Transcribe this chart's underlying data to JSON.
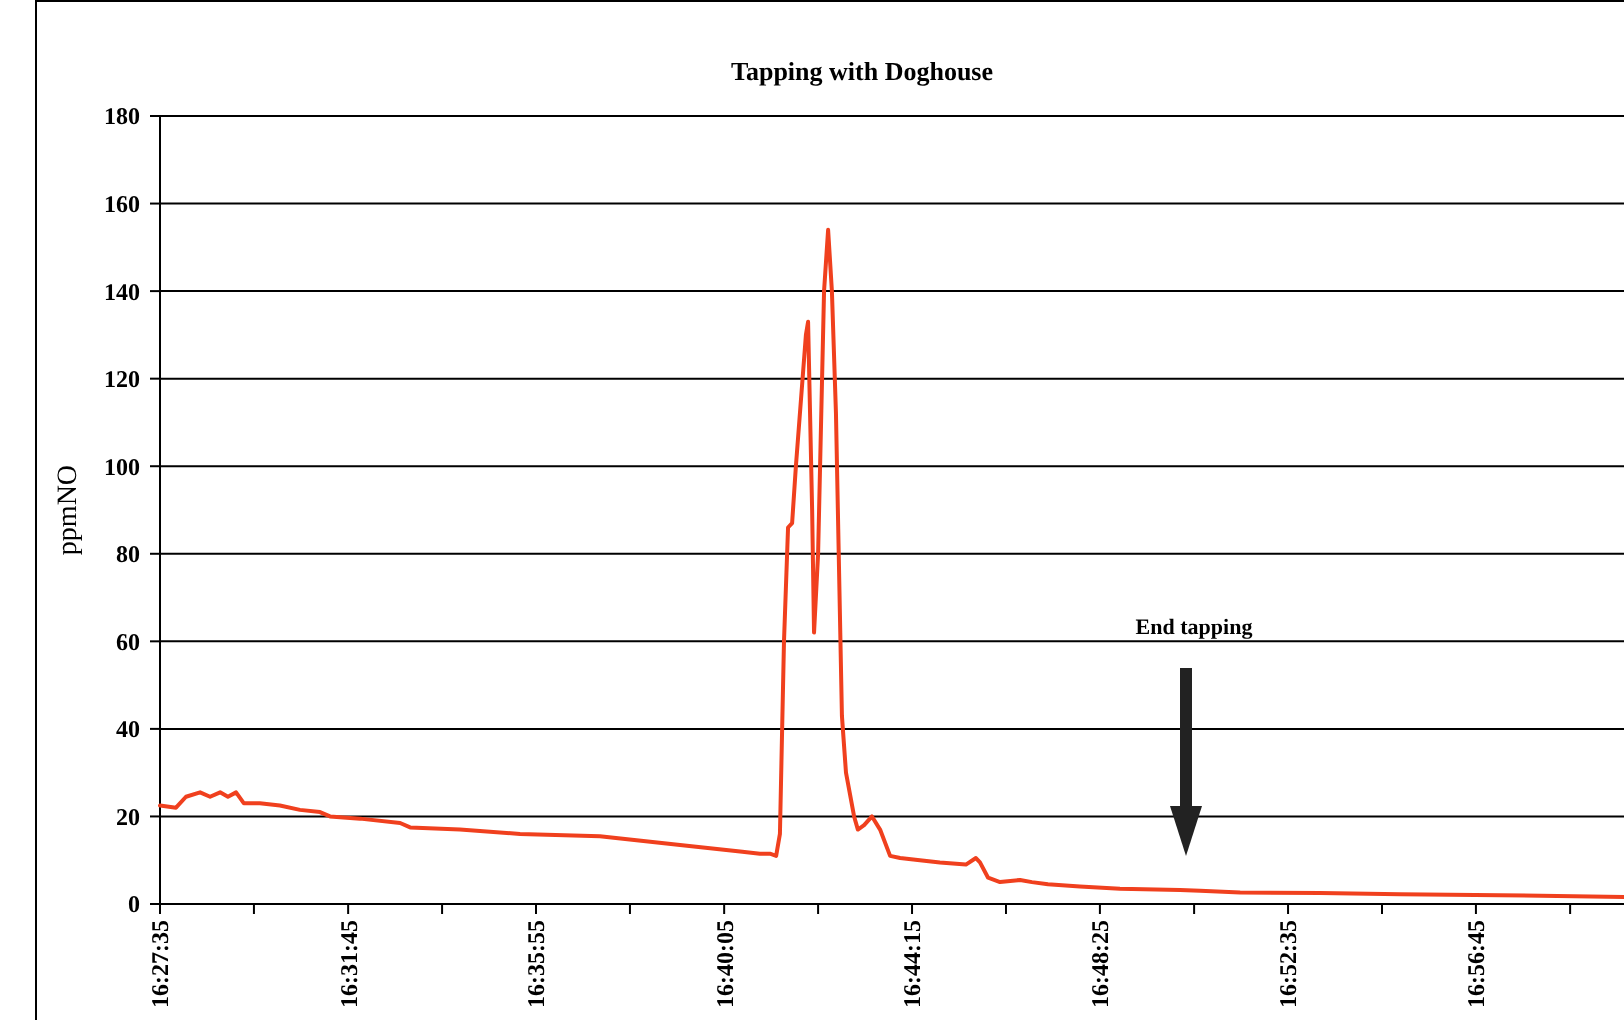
{
  "chart_data": {
    "type": "line",
    "title": "Tapping with Doghouse",
    "ylabel": "ppmNO",
    "x": [
      16.4597,
      16.4656,
      16.4693,
      16.4745,
      16.4782,
      16.4819,
      16.4848,
      16.4878,
      16.4907,
      16.4966,
      16.504,
      16.5114,
      16.5188,
      16.5225,
      16.5336,
      16.5484,
      16.5521,
      16.5705,
      16.5927,
      16.6222,
      16.6518,
      16.674,
      16.6813,
      16.685,
      16.6873,
      16.6887,
      16.6902,
      16.6917,
      16.6932,
      16.6946,
      16.6983,
      16.6991,
      16.7006,
      16.7013,
      16.7028,
      16.705,
      16.7065,
      16.7079,
      16.7094,
      16.7116,
      16.7131,
      16.7161,
      16.7175,
      16.7198,
      16.7227,
      16.7257,
      16.7294,
      16.7331,
      16.7404,
      16.7478,
      16.7574,
      16.7611,
      16.7626,
      16.7656,
      16.77,
      16.7774,
      16.7818,
      16.7877,
      16.7995,
      16.8143,
      16.8365,
      16.8439,
      16.8587,
      16.8882,
      16.9178,
      16.9547,
      17.0005
    ],
    "series": [
      {
        "color": "#f0401e",
        "values": [
          22.5,
          22,
          24.5,
          25.5,
          24.5,
          25.5,
          24.5,
          25.5,
          23,
          23,
          22.5,
          21.5,
          21,
          20,
          19.5,
          18.5,
          17.5,
          17,
          16,
          15.5,
          13.5,
          12,
          11.5,
          11.5,
          11,
          16,
          60,
          86,
          87,
          100,
          130,
          133,
          90,
          62,
          80,
          140,
          154,
          140,
          112,
          43,
          30,
          20,
          17,
          18,
          20,
          17,
          11,
          10.5,
          10,
          9.5,
          9,
          10.5,
          9.5,
          6,
          5,
          5.5,
          5,
          4.5,
          4,
          3.5,
          3.2,
          3,
          2.6,
          2.5,
          2.2,
          2,
          1.6
        ]
      }
    ],
    "xlim": [
      16.4597,
      17.0005
    ],
    "xticks": [
      {
        "value": 16.4597,
        "label": "16:27:35"
      },
      {
        "value": 16.4944,
        "label": null
      },
      {
        "value": 16.5292,
        "label": "16:31:45"
      },
      {
        "value": 16.5639,
        "label": null
      },
      {
        "value": 16.5986,
        "label": "16:35:55"
      },
      {
        "value": 16.6333,
        "label": null
      },
      {
        "value": 16.6681,
        "label": "16:40:05"
      },
      {
        "value": 16.7028,
        "label": null
      },
      {
        "value": 16.7375,
        "label": "16:44:15"
      },
      {
        "value": 16.7722,
        "label": null
      },
      {
        "value": 16.8069,
        "label": "16:48:25"
      },
      {
        "value": 16.8417,
        "label": null
      },
      {
        "value": 16.8764,
        "label": "16:52:35"
      },
      {
        "value": 16.9111,
        "label": null
      },
      {
        "value": 16.9458,
        "label": "16:56:45"
      },
      {
        "value": 16.9806,
        "label": null
      }
    ],
    "ylim": [
      0,
      180
    ],
    "yticks": [
      0,
      20,
      40,
      60,
      80,
      100,
      120,
      140,
      160,
      180
    ],
    "grid": "y",
    "marker": "none",
    "line_style": "solid",
    "annotations": [
      "End tapping"
    ]
  }
}
